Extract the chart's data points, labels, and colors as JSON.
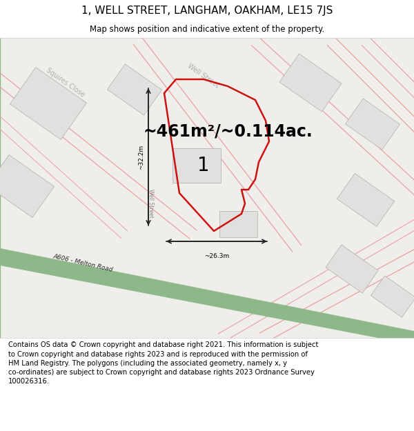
{
  "title": "1, WELL STREET, LANGHAM, OAKHAM, LE15 7JS",
  "subtitle": "Map shows position and indicative extent of the property.",
  "area_text": "~461m²/~0.114ac.",
  "width_label": "~26.3m",
  "height_label": "~32.2m",
  "street_label_1": "Squires Close",
  "street_label_2": "Well Street",
  "well_street_vert": "Well Street",
  "road_label": "A606 - Melton Road",
  "number_label": "1",
  "footer": "Contains OS data © Crown copyright and database right 2021. This information is subject to Crown copyright and database rights 2023 and is reproduced with the permission of HM Land Registry. The polygons (including the associated geometry, namely x, y co-ordinates) are subject to Crown copyright and database rights 2023 Ordnance Survey 100026316.",
  "bg_color": "#ffffff",
  "map_bg": "#f0eeeb",
  "building_color": "#e2e0de",
  "building_edge": "#b8b6b4",
  "plot_line_color": "#cc1111",
  "road_green_color": "#8db88a",
  "pink_line_color": "#e8a0a0",
  "gray_line_color": "#c8c4c0",
  "street_text_color": "#b0aeac",
  "dim_arrow_color": "#222222",
  "title_fontsize": 11,
  "subtitle_fontsize": 8.5,
  "area_fontsize": 17,
  "label_fontsize": 7,
  "footer_fontsize": 7.2
}
